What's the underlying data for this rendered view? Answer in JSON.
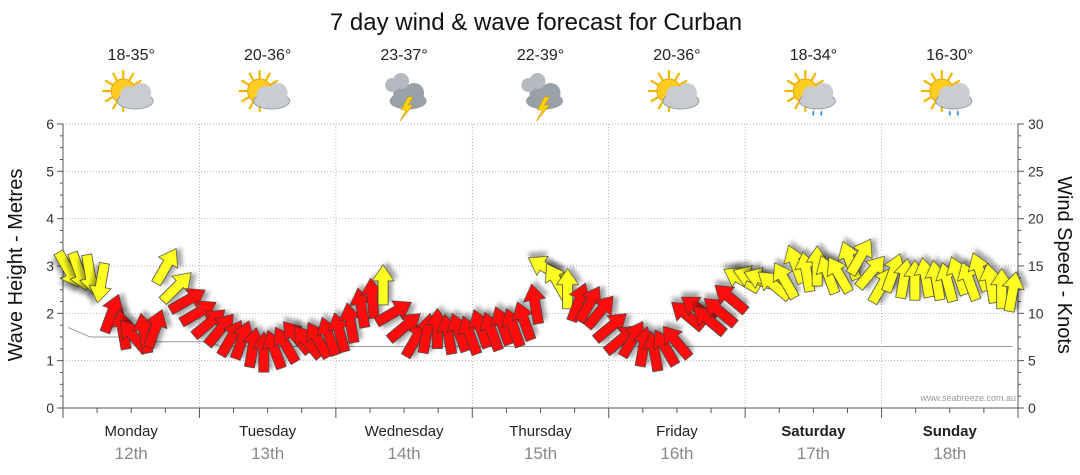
{
  "chart_data": {
    "type": "line",
    "title": "7 day wind & wave forecast for Curban",
    "ylabel_left": "Wave Height - Metres",
    "ylabel_right": "Wind Speed - Knots",
    "ylim_left": [
      0,
      6
    ],
    "ylim_right": [
      0,
      30
    ],
    "left_ticks": [
      "0",
      "1",
      "2",
      "3",
      "4",
      "5",
      "6"
    ],
    "right_ticks": [
      "0",
      "5",
      "10",
      "15",
      "20",
      "25",
      "30"
    ],
    "grid": true,
    "credit": "www.seabreeze.com.au",
    "days": [
      {
        "name": "Monday",
        "date": "12th",
        "bold": false,
        "temp": "18-35°",
        "icon": "sun-cloud-icon"
      },
      {
        "name": "Tuesday",
        "date": "13th",
        "bold": false,
        "temp": "20-36°",
        "icon": "sun-cloud-icon"
      },
      {
        "name": "Wednesday",
        "date": "14th",
        "bold": false,
        "temp": "23-37°",
        "icon": "storm-icon"
      },
      {
        "name": "Thursday",
        "date": "15th",
        "bold": false,
        "temp": "22-39°",
        "icon": "storm-icon"
      },
      {
        "name": "Friday",
        "date": "16th",
        "bold": false,
        "temp": "20-36°",
        "icon": "sun-cloud-icon"
      },
      {
        "name": "Saturday",
        "date": "17th",
        "bold": true,
        "temp": "18-34°",
        "icon": "sun-cloud-rain-icon"
      },
      {
        "name": "Sunday",
        "date": "18th",
        "bold": true,
        "temp": "16-30°",
        "icon": "sun-cloud-rain-icon"
      }
    ],
    "wind_speed_knots": [
      14.6,
      14.4,
      14.1,
      13.2,
      10.0,
      8.3,
      7.6,
      7.9,
      8.4,
      15.0,
      12.8,
      11.4,
      10.1,
      9.0,
      8.3,
      7.4,
      7.2,
      6.4,
      5.9,
      6.2,
      6.7,
      7.5,
      7.0,
      7.2,
      7.6,
      8.0,
      9.0,
      10.6,
      11.6,
      13.0,
      10.1,
      8.6,
      7.3,
      7.9,
      8.4,
      7.8,
      8.0,
      7.7,
      8.4,
      8.1,
      8.7,
      8.5,
      9.2,
      11.0,
      14.8,
      13.4,
      12.6,
      11.2,
      11.0,
      10.2,
      8.6,
      7.3,
      7.3,
      6.5,
      6.0,
      6.4,
      7.0,
      9.8,
      10.5,
      9.3,
      10.2,
      11.6,
      13.6,
      13.8,
      13.6,
      13.0,
      13.5,
      15.2,
      14.4,
      15.0,
      14.1,
      14.1,
      15.6,
      16.0,
      14.4,
      13.0,
      14.3,
      13.7,
      13.5,
      13.8,
      13.5,
      13.3,
      14.0,
      13.4,
      14.4,
      13.2,
      12.6,
      12.3
    ],
    "wind_direction_deg": [
      60,
      70,
      80,
      100,
      290,
      260,
      230,
      260,
      290,
      300,
      315,
      330,
      330,
      320,
      310,
      300,
      290,
      280,
      270,
      250,
      240,
      230,
      230,
      240,
      250,
      255,
      260,
      260,
      265,
      270,
      330,
      320,
      300,
      280,
      270,
      260,
      250,
      250,
      250,
      250,
      250,
      250,
      250,
      260,
      210,
      240,
      270,
      290,
      300,
      310,
      320,
      320,
      300,
      280,
      260,
      240,
      230,
      220,
      215,
      220,
      220,
      220,
      210,
      200,
      200,
      220,
      240,
      250,
      260,
      270,
      250,
      240,
      250,
      300,
      310,
      300,
      290,
      280,
      270,
      260,
      260,
      255,
      250,
      250,
      250,
      260,
      270,
      280
    ],
    "wave_height_m": [
      1.7,
      1.6,
      1.5,
      1.5,
      1.5,
      1.5,
      1.4,
      1.4,
      1.4,
      1.4,
      1.4,
      1.4,
      1.4,
      1.4,
      1.3,
      1.3,
      1.3,
      1.3,
      1.3,
      1.3,
      1.3,
      1.3,
      1.3,
      1.3,
      1.3,
      1.3,
      1.3,
      1.3,
      1.3,
      1.3,
      1.3,
      1.3,
      1.3,
      1.3,
      1.3,
      1.3,
      1.3,
      1.3,
      1.3,
      1.3,
      1.3,
      1.3,
      1.3,
      1.3,
      1.3,
      1.3,
      1.3,
      1.3,
      1.3,
      1.3,
      1.3,
      1.3,
      1.3,
      1.3,
      1.3,
      1.3,
      1.3,
      1.3,
      1.3,
      1.3,
      1.3,
      1.3,
      1.3,
      1.3,
      1.3,
      1.3,
      1.3,
      1.3,
      1.3,
      1.3,
      1.3,
      1.3,
      1.3,
      1.3,
      1.3,
      1.3,
      1.3,
      1.3,
      1.3,
      1.3,
      1.3,
      1.3,
      1.3,
      1.3,
      1.3,
      1.3,
      1.3,
      1.3
    ],
    "colors": {
      "strong": "#ff1111",
      "moderate": "#ffff22",
      "outline": "#333333",
      "grid": "#999999"
    }
  }
}
